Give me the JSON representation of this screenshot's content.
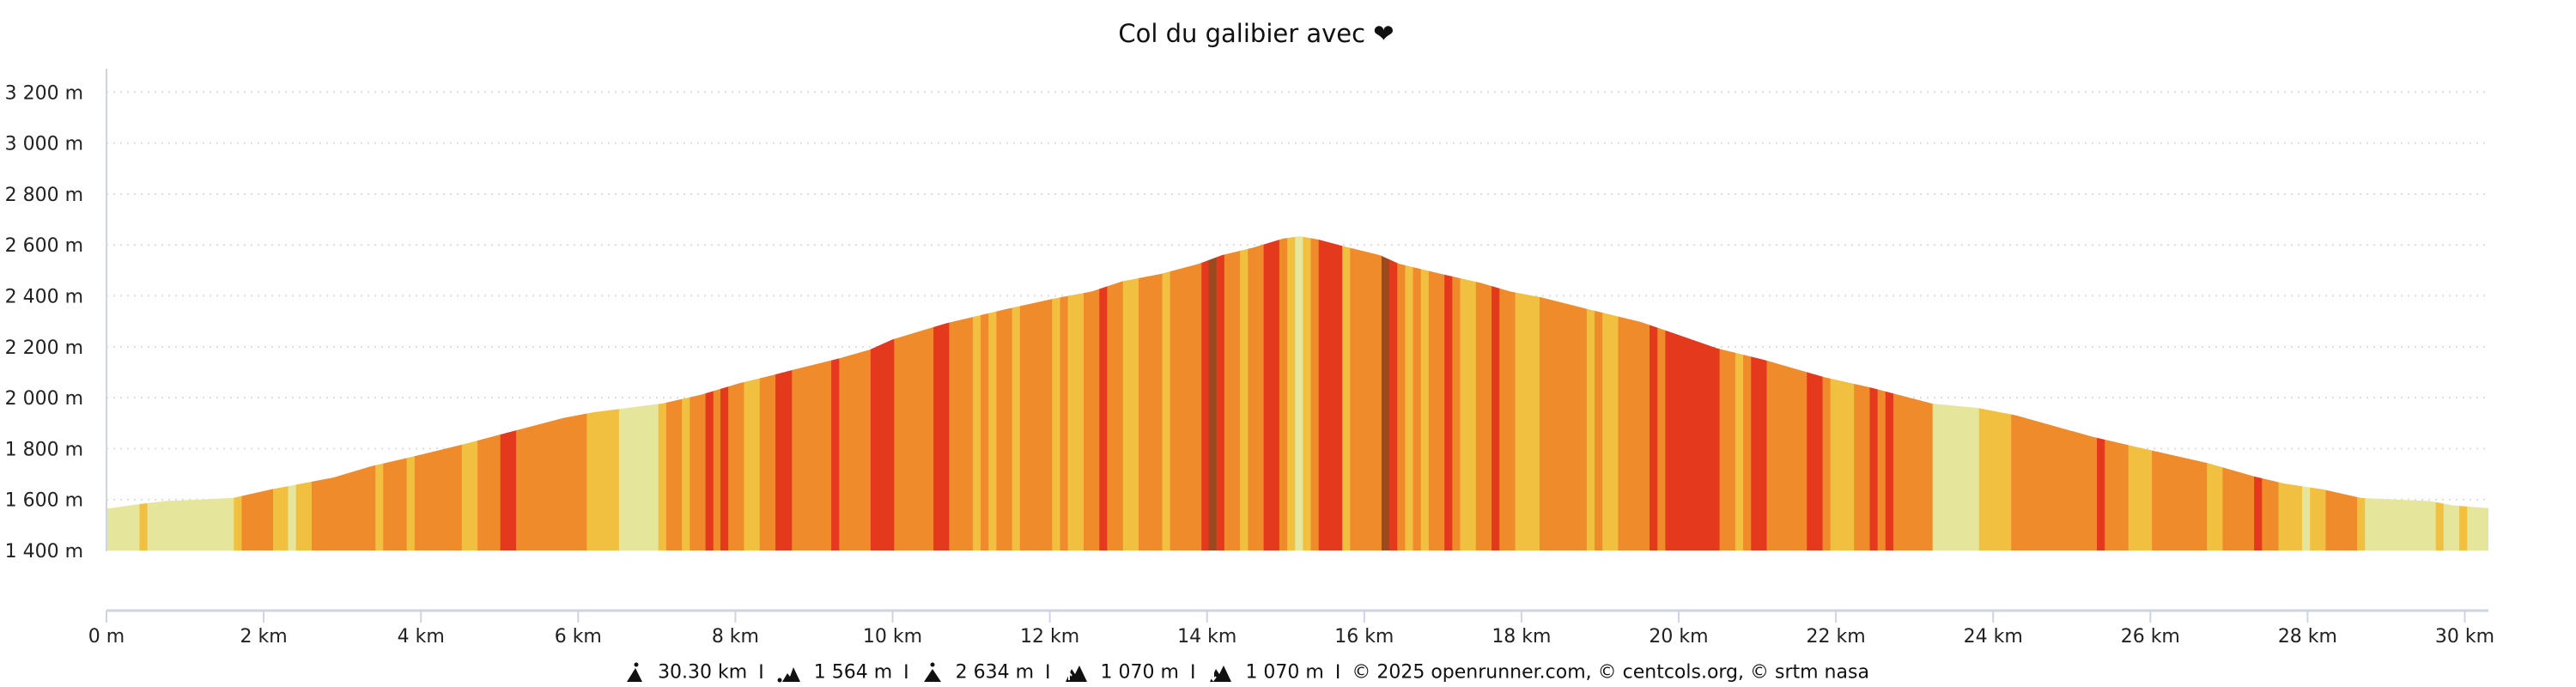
{
  "chart_data": {
    "type": "area",
    "title": "Col du galibier avec ❤",
    "xlabel": "",
    "ylabel": "",
    "xlim": [
      0,
      30.3
    ],
    "ylim": [
      1400,
      3200
    ],
    "grid": "horizontal dotted",
    "y_ticks": [
      {
        "value": 1400,
        "label": "1 400 m"
      },
      {
        "value": 1600,
        "label": "1 600 m"
      },
      {
        "value": 1800,
        "label": "1 800 m"
      },
      {
        "value": 2000,
        "label": "2 000 m"
      },
      {
        "value": 2200,
        "label": "2 200 m"
      },
      {
        "value": 2400,
        "label": "2 400 m"
      },
      {
        "value": 2600,
        "label": "2 600 m"
      },
      {
        "value": 2800,
        "label": "2 800 m"
      },
      {
        "value": 3000,
        "label": "3 000 m"
      },
      {
        "value": 3200,
        "label": "3 200 m"
      }
    ],
    "x_ticks": [
      {
        "value": 0,
        "label": "0 m"
      },
      {
        "value": 2,
        "label": "2 km"
      },
      {
        "value": 4,
        "label": "4 km"
      },
      {
        "value": 6,
        "label": "6 km"
      },
      {
        "value": 8,
        "label": "8 km"
      },
      {
        "value": 10,
        "label": "10 km"
      },
      {
        "value": 12,
        "label": "12 km"
      },
      {
        "value": 14,
        "label": "14 km"
      },
      {
        "value": 16,
        "label": "16 km"
      },
      {
        "value": 18,
        "label": "18 km"
      },
      {
        "value": 20,
        "label": "20 km"
      },
      {
        "value": 22,
        "label": "22 km"
      },
      {
        "value": 24,
        "label": "24 km"
      },
      {
        "value": 26,
        "label": "26 km"
      },
      {
        "value": 28,
        "label": "28 km"
      },
      {
        "value": 30,
        "label": "30 km"
      }
    ],
    "profile": [
      [
        0,
        1564
      ],
      [
        0.44,
        1583
      ],
      [
        0.74,
        1594
      ],
      [
        1.61,
        1606
      ],
      [
        2.1,
        1640
      ],
      [
        2.49,
        1663
      ],
      [
        2.88,
        1686
      ],
      [
        3.37,
        1731
      ],
      [
        3.86,
        1766
      ],
      [
        4.54,
        1817
      ],
      [
        5.03,
        1857
      ],
      [
        5.81,
        1920
      ],
      [
        6.2,
        1943
      ],
      [
        6.78,
        1966
      ],
      [
        7.07,
        1977
      ],
      [
        7.56,
        2011
      ],
      [
        8.05,
        2057
      ],
      [
        8.44,
        2086
      ],
      [
        8.73,
        2109
      ],
      [
        9.32,
        2154
      ],
      [
        9.71,
        2189
      ],
      [
        10.0,
        2229
      ],
      [
        10.68,
        2292
      ],
      [
        11.46,
        2349
      ],
      [
        12.05,
        2389
      ],
      [
        12.53,
        2417
      ],
      [
        12.92,
        2457
      ],
      [
        13.41,
        2486
      ],
      [
        13.9,
        2526
      ],
      [
        14.19,
        2560
      ],
      [
        14.58,
        2589
      ],
      [
        14.97,
        2625
      ],
      [
        15.18,
        2634
      ],
      [
        15.42,
        2621
      ],
      [
        15.71,
        2597
      ],
      [
        16.2,
        2560
      ],
      [
        16.44,
        2526
      ],
      [
        16.98,
        2486
      ],
      [
        17.47,
        2452
      ],
      [
        17.86,
        2417
      ],
      [
        18.25,
        2394
      ],
      [
        18.83,
        2349
      ],
      [
        19.52,
        2297
      ],
      [
        19.9,
        2257
      ],
      [
        20.49,
        2194
      ],
      [
        21.08,
        2149
      ],
      [
        21.86,
        2080
      ],
      [
        22.44,
        2040
      ],
      [
        23.22,
        1977
      ],
      [
        23.8,
        1960
      ],
      [
        24.29,
        1931
      ],
      [
        25.27,
        1846
      ],
      [
        25.76,
        1811
      ],
      [
        26.73,
        1743
      ],
      [
        27.32,
        1691
      ],
      [
        27.7,
        1663
      ],
      [
        28.19,
        1640
      ],
      [
        28.68,
        1606
      ],
      [
        29.56,
        1594
      ],
      [
        29.85,
        1577
      ],
      [
        30.3,
        1566
      ]
    ],
    "slope_colors": {
      "L": "#e5e59b",
      "Y": "#f2c041",
      "O": "#ef8b2b",
      "R": "#e5391e",
      "B": "#9b4a20"
    },
    "segments": [
      [
        0,
        0.42,
        "L"
      ],
      [
        0.42,
        0.52,
        "Y"
      ],
      [
        0.52,
        1.62,
        "L"
      ],
      [
        1.62,
        1.72,
        "Y"
      ],
      [
        1.72,
        2.12,
        "O"
      ],
      [
        2.12,
        2.31,
        "Y"
      ],
      [
        2.31,
        2.41,
        "L"
      ],
      [
        2.41,
        2.61,
        "Y"
      ],
      [
        2.61,
        3.42,
        "O"
      ],
      [
        3.42,
        3.52,
        "Y"
      ],
      [
        3.52,
        3.82,
        "O"
      ],
      [
        3.82,
        3.92,
        "Y"
      ],
      [
        3.92,
        4.52,
        "O"
      ],
      [
        4.52,
        4.72,
        "Y"
      ],
      [
        4.72,
        5.01,
        "O"
      ],
      [
        5.01,
        5.21,
        "R"
      ],
      [
        5.21,
        6.11,
        "O"
      ],
      [
        6.11,
        6.52,
        "Y"
      ],
      [
        6.52,
        7.02,
        "L"
      ],
      [
        7.02,
        7.12,
        "Y"
      ],
      [
        7.12,
        7.32,
        "O"
      ],
      [
        7.32,
        7.42,
        "Y"
      ],
      [
        7.42,
        7.62,
        "O"
      ],
      [
        7.62,
        7.72,
        "R"
      ],
      [
        7.72,
        7.81,
        "O"
      ],
      [
        7.81,
        7.91,
        "R"
      ],
      [
        7.91,
        8.11,
        "O"
      ],
      [
        8.11,
        8.31,
        "Y"
      ],
      [
        8.31,
        8.51,
        "O"
      ],
      [
        8.51,
        8.72,
        "R"
      ],
      [
        8.72,
        9.22,
        "O"
      ],
      [
        9.22,
        9.32,
        "R"
      ],
      [
        9.32,
        9.72,
        "O"
      ],
      [
        9.72,
        10.02,
        "R"
      ],
      [
        10.02,
        10.52,
        "O"
      ],
      [
        10.52,
        10.72,
        "R"
      ],
      [
        10.72,
        11.02,
        "O"
      ],
      [
        11.02,
        11.12,
        "Y"
      ],
      [
        11.12,
        11.22,
        "O"
      ],
      [
        11.22,
        11.32,
        "Y"
      ],
      [
        11.32,
        11.52,
        "O"
      ],
      [
        11.52,
        11.62,
        "Y"
      ],
      [
        11.62,
        12.03,
        "O"
      ],
      [
        12.03,
        12.13,
        "Y"
      ],
      [
        12.13,
        12.23,
        "O"
      ],
      [
        12.23,
        12.43,
        "Y"
      ],
      [
        12.43,
        12.63,
        "O"
      ],
      [
        12.63,
        12.73,
        "R"
      ],
      [
        12.73,
        12.93,
        "O"
      ],
      [
        12.93,
        13.13,
        "Y"
      ],
      [
        13.13,
        13.43,
        "O"
      ],
      [
        13.43,
        13.53,
        "Y"
      ],
      [
        13.53,
        13.93,
        "O"
      ],
      [
        13.93,
        14.02,
        "R"
      ],
      [
        14.02,
        14.12,
        "B"
      ],
      [
        14.12,
        14.22,
        "R"
      ],
      [
        14.22,
        14.42,
        "O"
      ],
      [
        14.42,
        14.52,
        "Y"
      ],
      [
        14.52,
        14.72,
        "O"
      ],
      [
        14.72,
        14.92,
        "R"
      ],
      [
        14.92,
        15.02,
        "O"
      ],
      [
        15.02,
        15.12,
        "Y"
      ],
      [
        15.12,
        15.22,
        "L"
      ],
      [
        15.22,
        15.32,
        "Y"
      ],
      [
        15.32,
        15.42,
        "O"
      ],
      [
        15.42,
        15.72,
        "R"
      ],
      [
        15.72,
        15.82,
        "Y"
      ],
      [
        15.82,
        16.22,
        "O"
      ],
      [
        16.22,
        16.32,
        "B"
      ],
      [
        16.32,
        16.42,
        "R"
      ],
      [
        16.42,
        16.52,
        "O"
      ],
      [
        16.52,
        16.62,
        "Y"
      ],
      [
        16.62,
        16.72,
        "O"
      ],
      [
        16.72,
        16.82,
        "Y"
      ],
      [
        16.82,
        17.02,
        "O"
      ],
      [
        17.02,
        17.12,
        "R"
      ],
      [
        17.12,
        17.22,
        "O"
      ],
      [
        17.22,
        17.42,
        "Y"
      ],
      [
        17.42,
        17.62,
        "O"
      ],
      [
        17.62,
        17.72,
        "R"
      ],
      [
        17.72,
        17.92,
        "O"
      ],
      [
        17.92,
        18.23,
        "Y"
      ],
      [
        18.23,
        18.83,
        "O"
      ],
      [
        18.83,
        18.93,
        "Y"
      ],
      [
        18.93,
        19.03,
        "O"
      ],
      [
        19.03,
        19.23,
        "Y"
      ],
      [
        19.23,
        19.63,
        "O"
      ],
      [
        19.63,
        19.73,
        "R"
      ],
      [
        19.73,
        19.83,
        "O"
      ],
      [
        19.83,
        20.52,
        "R"
      ],
      [
        20.52,
        20.72,
        "O"
      ],
      [
        20.72,
        20.82,
        "Y"
      ],
      [
        20.82,
        20.92,
        "O"
      ],
      [
        20.92,
        21.12,
        "R"
      ],
      [
        21.12,
        21.63,
        "O"
      ],
      [
        21.63,
        21.83,
        "R"
      ],
      [
        21.83,
        21.93,
        "O"
      ],
      [
        21.93,
        22.23,
        "Y"
      ],
      [
        22.23,
        22.43,
        "O"
      ],
      [
        22.43,
        22.53,
        "R"
      ],
      [
        22.53,
        22.63,
        "O"
      ],
      [
        22.63,
        22.73,
        "R"
      ],
      [
        22.73,
        23.23,
        "O"
      ],
      [
        23.23,
        23.82,
        "L"
      ],
      [
        23.82,
        24.23,
        "Y"
      ],
      [
        24.23,
        25.32,
        "O"
      ],
      [
        25.32,
        25.42,
        "R"
      ],
      [
        25.42,
        25.72,
        "O"
      ],
      [
        25.72,
        26.02,
        "Y"
      ],
      [
        26.02,
        26.72,
        "O"
      ],
      [
        26.72,
        26.92,
        "Y"
      ],
      [
        26.92,
        27.32,
        "O"
      ],
      [
        27.32,
        27.42,
        "R"
      ],
      [
        27.42,
        27.63,
        "O"
      ],
      [
        27.63,
        27.93,
        "Y"
      ],
      [
        27.93,
        28.03,
        "L"
      ],
      [
        28.03,
        28.23,
        "Y"
      ],
      [
        28.23,
        28.63,
        "O"
      ],
      [
        28.63,
        28.73,
        "Y"
      ],
      [
        28.73,
        29.63,
        "L"
      ],
      [
        29.63,
        29.73,
        "Y"
      ],
      [
        29.73,
        29.93,
        "L"
      ],
      [
        29.93,
        30.03,
        "Y"
      ],
      [
        30.03,
        30.3,
        "L"
      ]
    ]
  },
  "footer": {
    "items": [
      {
        "icon": "distance-icon",
        "value": "30.30 km"
      },
      {
        "icon": "min-altitude-icon",
        "value": "1 564 m"
      },
      {
        "icon": "max-altitude-icon",
        "value": "2 634 m"
      },
      {
        "icon": "ascent-icon",
        "value": "1 070 m"
      },
      {
        "icon": "descent-icon",
        "value": "1 070 m"
      }
    ],
    "separator": "I",
    "credits": "© 2025 openrunner.com, © centcols.org, © srtm nasa"
  }
}
